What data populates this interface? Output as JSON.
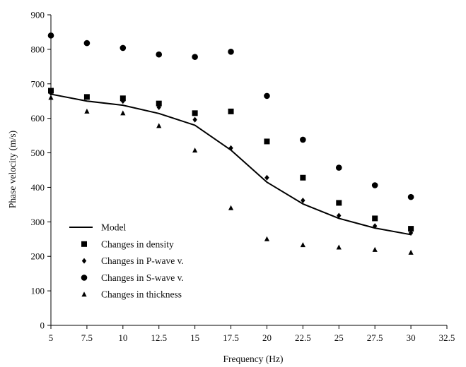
{
  "chart_data": {
    "type": "scatter",
    "title": "",
    "xlabel": "Frequency (Hz)",
    "ylabel": "Phase velocity (m/s)",
    "xlim": [
      5,
      32.5
    ],
    "ylim": [
      0,
      900
    ],
    "xticks": [
      "5",
      "7.5",
      "10",
      "12.5",
      "15",
      "17.5",
      "20",
      "22.5",
      "25",
      "27.5",
      "30",
      "32.5"
    ],
    "yticks": [
      "0",
      "100",
      "200",
      "300",
      "400",
      "500",
      "600",
      "700",
      "800",
      "900"
    ],
    "grid": false,
    "legend_position": "lower-left",
    "series": [
      {
        "name": "Model",
        "style": "line",
        "color": "#000000",
        "x": [
          5,
          7.5,
          10,
          12.5,
          15,
          17.5,
          20,
          22.5,
          25,
          27.5,
          30
        ],
        "y": [
          670,
          650,
          638,
          614,
          580,
          508,
          415,
          352,
          310,
          282,
          263
        ]
      },
      {
        "name": "Changes in density",
        "marker": "square",
        "color": "#000000",
        "x": [
          5,
          7.5,
          10,
          12.5,
          15,
          17.5,
          20,
          22.5,
          25,
          27.5,
          30
        ],
        "y": [
          680,
          662,
          658,
          643,
          615,
          620,
          533,
          428,
          355,
          310,
          280
        ]
      },
      {
        "name": "Changes in P-wave v.",
        "marker": "diamond",
        "color": "#000000",
        "x": [
          5,
          7.5,
          10,
          12.5,
          15,
          17.5,
          20,
          22.5,
          25,
          27.5,
          30
        ],
        "y": [
          673,
          662,
          650,
          632,
          596,
          514,
          428,
          362,
          318,
          288,
          268
        ]
      },
      {
        "name": "Changes in S-wave v.",
        "marker": "circle",
        "color": "#000000",
        "x": [
          5,
          7.5,
          10,
          12.5,
          15,
          17.5,
          20,
          22.5,
          25,
          27.5,
          30
        ],
        "y": [
          840,
          818,
          804,
          785,
          778,
          793,
          665,
          538,
          457,
          406,
          372
        ]
      },
      {
        "name": "Changes in thickness",
        "marker": "triangle",
        "color": "#000000",
        "x": [
          5,
          7.5,
          10,
          12.5,
          15,
          17.5,
          20,
          22.5,
          25,
          27.5,
          30
        ],
        "y": [
          660,
          620,
          615,
          578,
          507,
          340,
          250,
          233,
          226,
          219,
          211
        ]
      }
    ]
  }
}
